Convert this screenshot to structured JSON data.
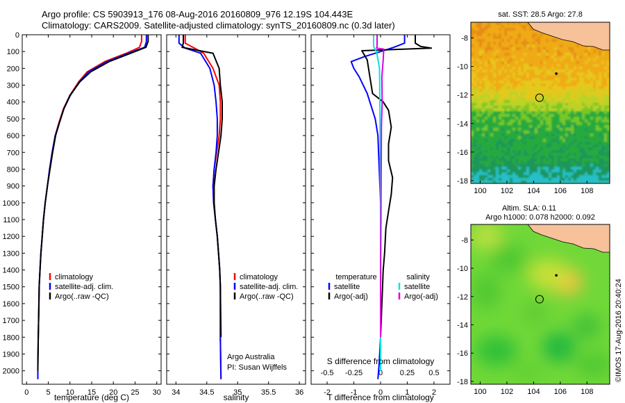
{
  "header": {
    "line1": "Argo profile: CS 5903913_176 08-Aug-2016 20160809_976 12.19S 104.443E",
    "line2": "Climatology: CARS2009. Satellite-adjusted climatology: synTS_20160809.nc (0.3d later)"
  },
  "footer": {
    "credit": "Argo Australia",
    "pi": "PI: Susan Wijffels",
    "stamp": "©IMOS 17-Aug-2016 20:40:24"
  },
  "colors": {
    "climatology": "#ff0000",
    "satellite": "#0000ff",
    "argo": "#000000",
    "sat_salinity": "#00e5e5",
    "argo_salinity": "#e000e0",
    "land": "#f7c19a"
  },
  "chart_data": [
    {
      "type": "line",
      "xlabel": "temperature (deg C)",
      "ylabel": "",
      "xlim": [
        -1,
        31
      ],
      "ylim": [
        2080,
        0
      ],
      "xticks": [
        0,
        5,
        10,
        15,
        20,
        25,
        30
      ],
      "yticks": [
        0,
        100,
        200,
        300,
        400,
        500,
        600,
        700,
        800,
        900,
        1000,
        1100,
        1200,
        1300,
        1400,
        1500,
        1600,
        1700,
        1800,
        1900,
        2000
      ],
      "legend": [
        "climatology",
        "satellite-adj. clim.",
        "Argo(..raw -QC)"
      ],
      "legend_position": "lower-center",
      "series": [
        {
          "name": "climatology",
          "color": "#ff0000",
          "x": [
            26.5,
            26.5,
            26.0,
            23.0,
            18.0,
            14.0,
            12.0,
            10.0,
            8.5,
            7.5,
            6.6,
            5.9,
            5.3,
            4.8,
            4.3,
            3.9,
            3.6,
            3.3,
            3.1,
            2.9,
            2.8,
            2.7,
            2.6,
            2.6
          ],
          "y": [
            0,
            40,
            75,
            110,
            160,
            220,
            280,
            360,
            440,
            520,
            600,
            700,
            800,
            900,
            1000,
            1100,
            1200,
            1300,
            1400,
            1500,
            1650,
            1800,
            1950,
            2050
          ]
        },
        {
          "name": "satellite-adj. clim.",
          "color": "#0000ff",
          "x": [
            27.6,
            27.6,
            27.2,
            23.5,
            18.5,
            14.3,
            12.2,
            10.1,
            8.6,
            7.6,
            6.6,
            5.9,
            5.3,
            4.8,
            4.3,
            3.9,
            3.6,
            3.3,
            3.1,
            2.9,
            2.8,
            2.7,
            2.6,
            2.6
          ],
          "y": [
            0,
            40,
            75,
            110,
            160,
            220,
            280,
            360,
            440,
            520,
            600,
            700,
            800,
            900,
            1000,
            1100,
            1200,
            1300,
            1400,
            1500,
            1650,
            1800,
            1950,
            2050
          ]
        },
        {
          "name": "Argo(..raw -QC)",
          "color": "#000000",
          "x": [
            28.0,
            28.0,
            27.5,
            24.0,
            19.0,
            14.8,
            12.3,
            10.0,
            8.6,
            7.6,
            6.7,
            6.0,
            5.4,
            4.8,
            4.3,
            3.9,
            3.6,
            3.3,
            3.1,
            2.9,
            2.8,
            2.7,
            2.6
          ],
          "y": [
            0,
            40,
            75,
            110,
            160,
            220,
            280,
            360,
            440,
            520,
            600,
            700,
            800,
            900,
            1000,
            1100,
            1200,
            1300,
            1400,
            1500,
            1650,
            1800,
            2000
          ]
        }
      ]
    },
    {
      "type": "line",
      "xlabel": "salinity",
      "ylabel": "",
      "xlim": [
        33.85,
        36.1
      ],
      "ylim": [
        2080,
        0
      ],
      "xticks": [
        34,
        34.5,
        35,
        35.5,
        36
      ],
      "legend": [
        "climatology",
        "satellite-adj. clim.",
        "Argo(..raw -QC)"
      ],
      "legend_position": "lower-right",
      "series": [
        {
          "name": "climatology",
          "color": "#ff0000",
          "x": [
            34.15,
            34.15,
            34.3,
            34.45,
            34.6,
            34.7,
            34.72,
            34.72,
            34.7,
            34.66,
            34.62,
            34.6,
            34.61,
            34.64,
            34.67,
            34.69,
            34.71,
            34.72,
            34.72,
            34.73
          ],
          "y": [
            0,
            50,
            80,
            110,
            200,
            300,
            400,
            500,
            600,
            700,
            800,
            900,
            1000,
            1100,
            1200,
            1300,
            1400,
            1500,
            1800,
            2050
          ]
        },
        {
          "name": "satellite-adj. clim.",
          "color": "#0000ff",
          "x": [
            34.05,
            34.05,
            34.15,
            34.4,
            34.55,
            34.62,
            34.65,
            34.67,
            34.67,
            34.65,
            34.62,
            34.6,
            34.61,
            34.64,
            34.67,
            34.69,
            34.71,
            34.72,
            34.72,
            34.73
          ],
          "y": [
            0,
            50,
            80,
            110,
            200,
            300,
            400,
            500,
            600,
            700,
            800,
            900,
            1000,
            1100,
            1200,
            1300,
            1400,
            1500,
            1800,
            2050
          ]
        },
        {
          "name": "Argo(..raw -QC)",
          "color": "#000000",
          "x": [
            34.12,
            34.12,
            34.1,
            34.6,
            34.7,
            34.72,
            34.75,
            34.75,
            34.73,
            34.69,
            34.65,
            34.62,
            34.62,
            34.64,
            34.67,
            34.69,
            34.71,
            34.72,
            34.73
          ],
          "y": [
            0,
            50,
            75,
            110,
            200,
            300,
            400,
            500,
            600,
            700,
            800,
            900,
            1000,
            1100,
            1200,
            1300,
            1400,
            1500,
            1800
          ]
        }
      ]
    },
    {
      "type": "line",
      "xlabel": "T difference from climatology",
      "xlabel_top": "S difference from climatology",
      "ylabel": "",
      "xlim": [
        -2.6,
        2.6
      ],
      "ylim": [
        2080,
        0
      ],
      "xticks": [
        -2,
        -1,
        0,
        1,
        2
      ],
      "xticks_s": [
        -0.5,
        -0.25,
        0,
        0.25,
        0.5
      ],
      "legend_titles": [
        "temperature",
        "salinity"
      ],
      "legend": [
        "satellite",
        "Argo(-adj)",
        "satellite",
        "Argo(-adj)"
      ],
      "legend_position": "lower-center",
      "series": [
        {
          "name": "satellite",
          "color": "#0000ff",
          "x": [
            0.9,
            0.9,
            0.5,
            0.2,
            -0.6,
            -1.1,
            -1.0,
            -0.8,
            -0.5,
            -0.4,
            -0.2,
            -0.1,
            -0.05,
            0.0,
            0.0,
            0.0,
            0.0,
            0.0,
            -0.05,
            -0.1
          ],
          "y": [
            0,
            50,
            75,
            90,
            130,
            160,
            200,
            250,
            350,
            400,
            500,
            600,
            800,
            1000,
            1200,
            1400,
            1600,
            1800,
            1950,
            2050
          ]
        },
        {
          "name": "Argo(-adj)",
          "color": "#000000",
          "x": [
            1.3,
            1.3,
            1.5,
            1.9,
            -0.7,
            -0.5,
            -0.4,
            -0.3,
            0.1,
            0.3,
            0.4,
            0.3,
            0.3,
            0.45,
            0.4,
            0.3,
            0.2,
            0.15,
            0.1,
            0.05,
            0.0,
            0.0
          ],
          "y": [
            0,
            50,
            70,
            80,
            95,
            150,
            250,
            350,
            400,
            450,
            550,
            650,
            750,
            850,
            950,
            1050,
            1150,
            1300,
            1400,
            1600,
            1800,
            2000
          ]
        },
        {
          "name": "satellite (salinity)",
          "color": "#00e5e5",
          "x": [
            -0.26,
            -0.26,
            -0.23,
            -0.15,
            -0.04,
            -0.03,
            -0.02,
            -0.01,
            0.0,
            0.0,
            0.0,
            0.0
          ],
          "y": [
            0,
            70,
            80,
            100,
            200,
            300,
            500,
            800,
            1100,
            1400,
            1700,
            2000
          ]
        },
        {
          "name": "Argo(-adj) (salinity)",
          "color": "#e000e0",
          "x": [
            -0.13,
            -0.13,
            -0.15,
            0.12,
            0.1,
            0.05,
            0.06,
            0.03,
            0.03,
            0.02,
            0.01,
            0.0,
            0.0
          ],
          "y": [
            0,
            70,
            80,
            85,
            150,
            250,
            400,
            550,
            600,
            900,
            1200,
            1500,
            1800
          ]
        }
      ]
    },
    {
      "type": "heatmap",
      "title": "sat. SST: 28.5 Argo: 27.8",
      "xlim": [
        99.3,
        109.7
      ],
      "ylim": [
        -18.2,
        -6.9
      ],
      "xticks": [
        100,
        102,
        104,
        106,
        108
      ],
      "yticks": [
        -8,
        -10,
        -12,
        -14,
        -16,
        -18
      ],
      "ytick_labels": [
        "-8",
        "-10",
        "-12",
        "-14",
        "-16",
        "-18"
      ],
      "profile_location": {
        "lon": 104.443,
        "lat": -12.19
      },
      "island": {
        "lon": 105.7,
        "lat": -10.5
      }
    },
    {
      "type": "heatmap",
      "title": "Altim. SLA: 0.11",
      "subtitle": "Argo h1000: 0.078 h2000: 0.092",
      "xlim": [
        99.3,
        109.7
      ],
      "ylim": [
        -18.2,
        -6.9
      ],
      "xticks": [
        100,
        102,
        104,
        106,
        108
      ],
      "yticks": [
        -8,
        -10,
        -12,
        -14,
        -16,
        -18
      ],
      "ytick_labels": [
        "-8",
        "-10",
        "-12",
        "-14",
        "-16",
        "-18"
      ],
      "profile_location": {
        "lon": 104.443,
        "lat": -12.19
      },
      "island": {
        "lon": 105.7,
        "lat": -10.5
      }
    }
  ]
}
